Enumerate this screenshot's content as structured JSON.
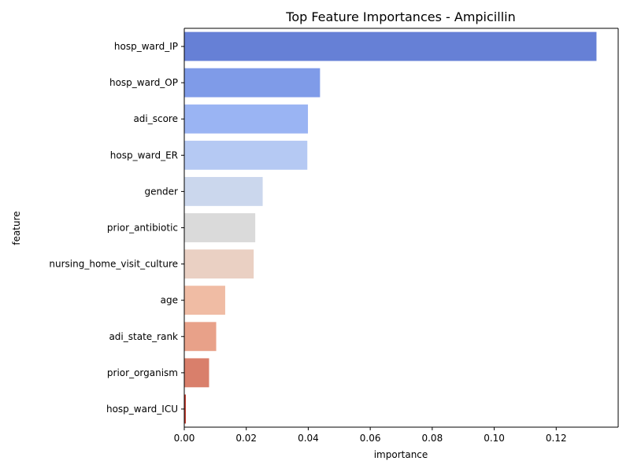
{
  "chart_data": {
    "type": "bar",
    "orientation": "horizontal",
    "title": "Top Feature Importances - Ampicillin",
    "xlabel": "importance",
    "ylabel": "feature",
    "xlim": [
      0,
      0.14
    ],
    "xticks": [
      0.0,
      0.02,
      0.04,
      0.06,
      0.08,
      0.1,
      0.12
    ],
    "xtick_labels": [
      "0.00",
      "0.02",
      "0.04",
      "0.06",
      "0.08",
      "0.10",
      "0.12"
    ],
    "grid": false,
    "categories": [
      "hosp_ward_IP",
      "hosp_ward_OP",
      "adi_score",
      "hosp_ward_ER",
      "gender",
      "prior_antibiotic",
      "nursing_home_visit_culture",
      "age",
      "adi_state_rank",
      "prior_organism",
      "hosp_ward_ICU"
    ],
    "values": [
      0.133,
      0.0438,
      0.0399,
      0.0397,
      0.0253,
      0.0229,
      0.0224,
      0.0132,
      0.0103,
      0.008,
      0.0005
    ],
    "colors": [
      "#6680d6",
      "#7f9be8",
      "#9ab4f3",
      "#b5c9f3",
      "#cbd7ed",
      "#dadada",
      "#ead0c3",
      "#f0bca4",
      "#e8a189",
      "#d97f6b",
      "#c0392b"
    ]
  }
}
